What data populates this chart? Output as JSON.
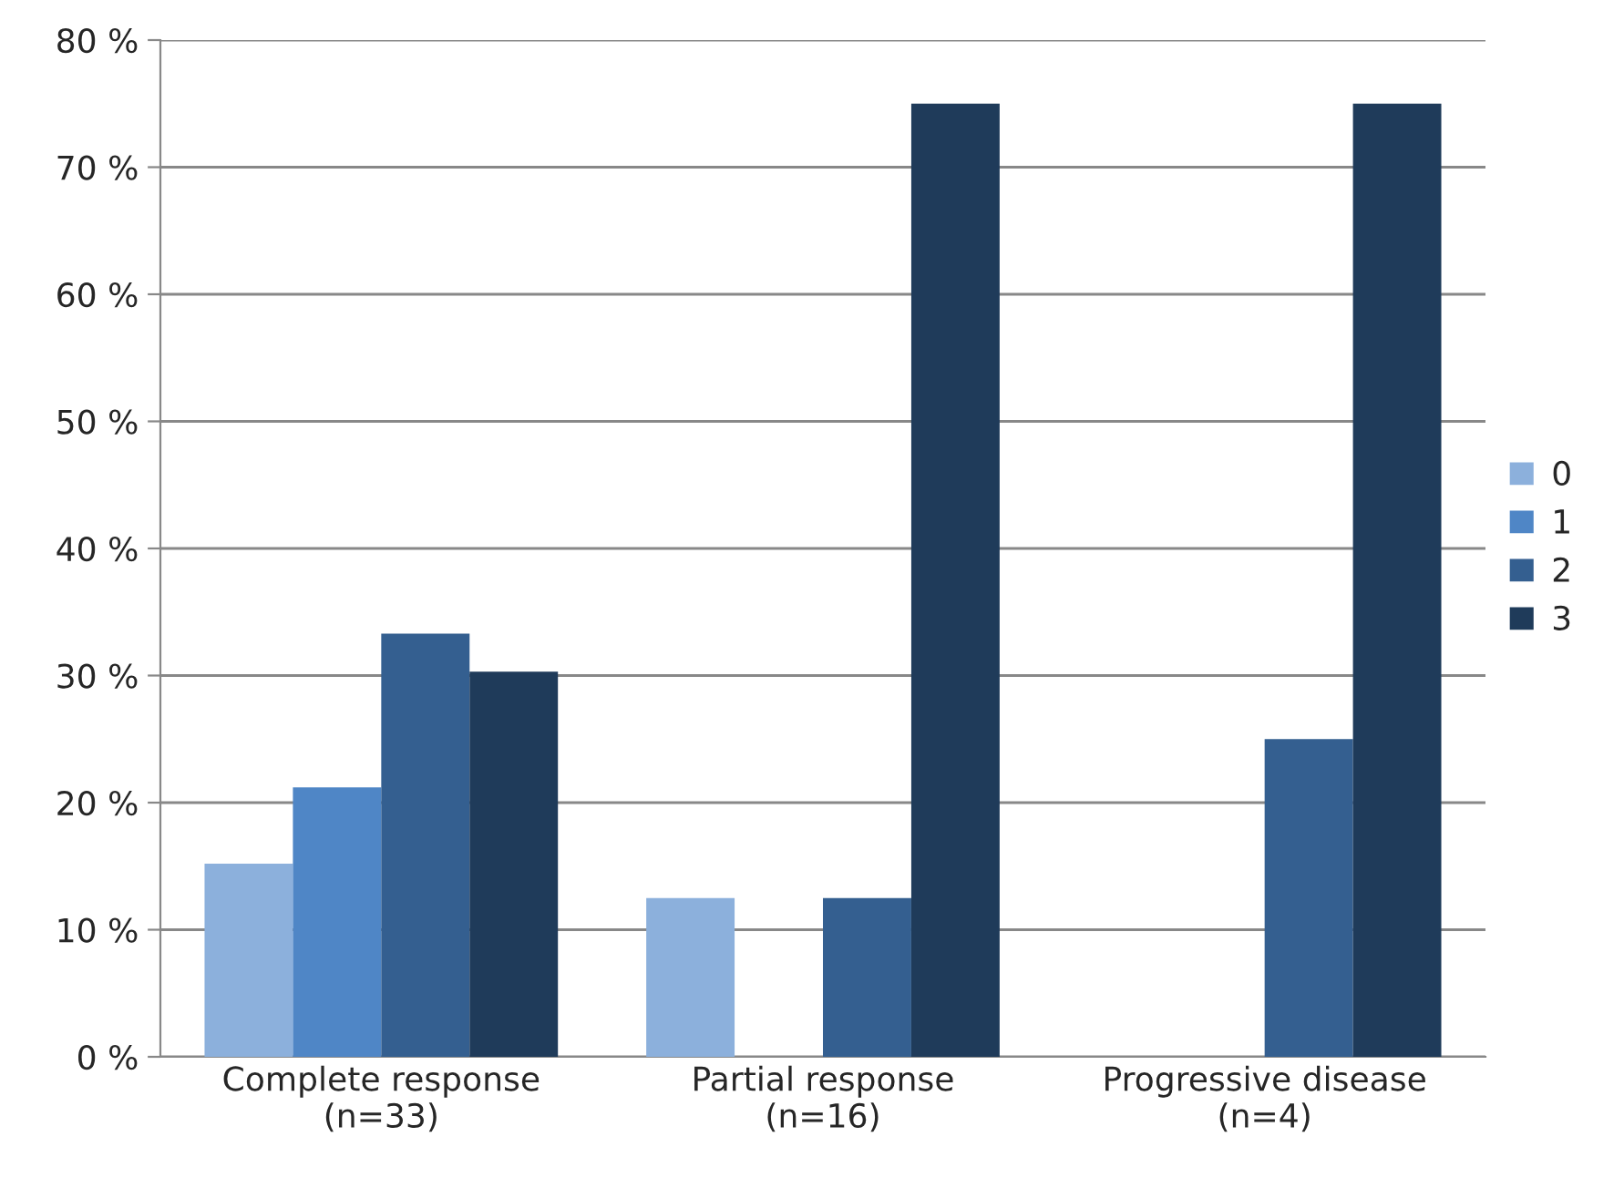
{
  "chart_data": {
    "type": "bar",
    "categories": [
      "Complete response\n(n=33)",
      "Partial response\n(n=16)",
      "Progressive disease\n(n=4)"
    ],
    "series": [
      {
        "name": "0",
        "color": "#8cb0dc",
        "values": [
          15.2,
          12.5,
          0
        ]
      },
      {
        "name": "1",
        "color": "#4f86c6",
        "values": [
          21.2,
          0,
          0
        ]
      },
      {
        "name": "2",
        "color": "#345f90",
        "values": [
          33.3,
          12.5,
          25
        ]
      },
      {
        "name": "3",
        "color": "#1f3b5a",
        "values": [
          30.3,
          75,
          75
        ]
      }
    ],
    "ylim": [
      0,
      80
    ],
    "yticks": [
      {
        "value": 0,
        "label": "0 %"
      },
      {
        "value": 10,
        "label": "10 %"
      },
      {
        "value": 20,
        "label": "20 %"
      },
      {
        "value": 30,
        "label": "30 %"
      },
      {
        "value": 40,
        "label": "40 %"
      },
      {
        "value": 50,
        "label": "50 %"
      },
      {
        "value": 60,
        "label": "60 %"
      },
      {
        "value": 70,
        "label": "70 %"
      },
      {
        "value": 80,
        "label": "80 %"
      }
    ],
    "grid": "y",
    "legend": "right"
  }
}
